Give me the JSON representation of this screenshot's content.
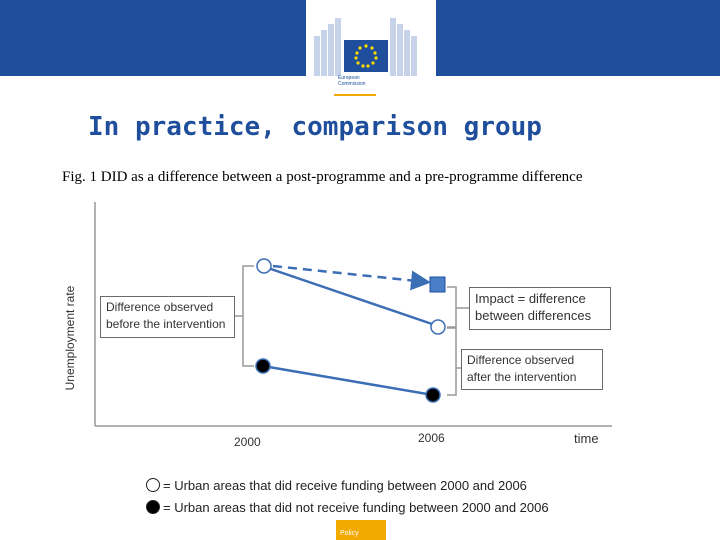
{
  "header": {
    "logo_line1": "European",
    "logo_line2": "Commission",
    "banner_color": "#1f4f9c",
    "accent_color": "#f2a900",
    "logo_icon": "eu-flag-icon"
  },
  "slide": {
    "title": "In practice, comparison group",
    "caption": "Fig. 1 DID as a difference between a post-programme and a pre-programme difference"
  },
  "diagram": {
    "y_axis_label": "Unemployment rate",
    "x_tick_2000": "2000",
    "x_tick_2006": "2006",
    "x_axis_end_label": "time",
    "box_before_line1": "Difference observed",
    "box_before_line2": "before the intervention",
    "box_impact_line1": "Impact = difference",
    "box_impact_line2": "between differences",
    "box_after_line1": "Difference observed",
    "box_after_line2": "after the intervention",
    "treated_color": "#3b6eb5",
    "counterfactual_color": "#4a7fc8"
  },
  "legend": [
    {
      "marker": "open-circle-icon",
      "text": "= Urban areas that did receive funding between 2000 and 2006"
    },
    {
      "marker": "filled-circle-icon",
      "text": "= Urban areas that did not receive funding between 2000 and 2006"
    }
  ],
  "footer": {
    "text": "Policy"
  }
}
